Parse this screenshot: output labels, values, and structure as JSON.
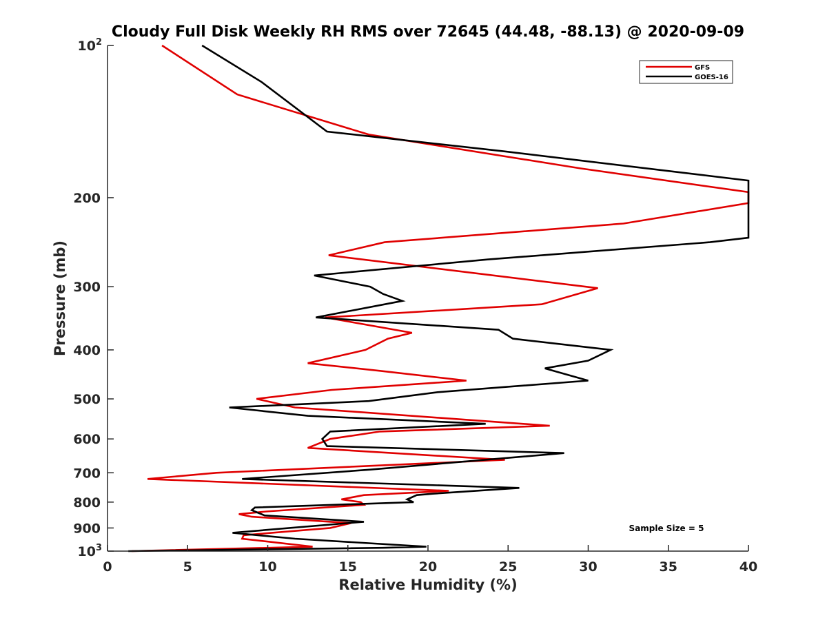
{
  "chart_data": {
    "type": "line",
    "title": "Cloudy Full Disk Weekly RH RMS over 72645 (44.48, -88.13) @ 2020-09-09",
    "xlabel": "Relative Humidity (%)",
    "ylabel": "Pressure (mb)",
    "xlim": [
      0,
      40
    ],
    "ylim": [
      100,
      1000
    ],
    "y_scale": "log",
    "y_reversed": true,
    "x_ticks": [
      0,
      5,
      10,
      15,
      20,
      25,
      30,
      35,
      40
    ],
    "x_tick_labels": [
      "0",
      "5",
      "10",
      "15",
      "20",
      "25",
      "30",
      "35",
      "40"
    ],
    "y_ticks": [
      200,
      300,
      400,
      500,
      600,
      700,
      800,
      900
    ],
    "y_tick_labels": [
      "200",
      "300",
      "400",
      "500",
      "600",
      "700",
      "800",
      "900"
    ],
    "y_end_ticks": [
      {
        "value": 100,
        "base": "10",
        "exp": "2"
      },
      {
        "value": 1000,
        "base": "10",
        "exp": "3"
      }
    ],
    "grid": false,
    "legend_position": "top-right",
    "annotation": "Sample Size = 5",
    "series": [
      {
        "name": "GFS",
        "color": "#e00000",
        "points": [
          [
            3.4,
            100
          ],
          [
            8.1,
            125
          ],
          [
            16.3,
            150
          ],
          [
            29.5,
            175
          ],
          [
            40.0,
            195
          ],
          [
            40.0,
            205
          ],
          [
            32.2,
            225
          ],
          [
            17.3,
            245
          ],
          [
            13.8,
            260
          ],
          [
            30.6,
            302
          ],
          [
            27.1,
            325
          ],
          [
            13.6,
            345
          ],
          [
            19.0,
            370
          ],
          [
            17.5,
            380
          ],
          [
            16.1,
            400
          ],
          [
            12.5,
            425
          ],
          [
            17.0,
            440
          ],
          [
            22.4,
            460
          ],
          [
            14.0,
            480
          ],
          [
            9.3,
            500
          ],
          [
            11.7,
            520
          ],
          [
            27.6,
            565
          ],
          [
            17.0,
            580
          ],
          [
            13.9,
            600
          ],
          [
            12.5,
            625
          ],
          [
            24.8,
            660
          ],
          [
            6.8,
            700
          ],
          [
            2.5,
            720
          ],
          [
            21.3,
            760
          ],
          [
            16.0,
            775
          ],
          [
            14.6,
            790
          ],
          [
            15.8,
            800
          ],
          [
            16.0,
            810
          ],
          [
            9.9,
            835
          ],
          [
            8.2,
            845
          ],
          [
            9.0,
            855
          ],
          [
            15.2,
            880
          ],
          [
            13.9,
            900
          ],
          [
            8.5,
            930
          ],
          [
            8.4,
            945
          ],
          [
            12.8,
            980
          ],
          [
            1.5,
            1000
          ]
        ]
      },
      {
        "name": "GOES-16",
        "color": "#000000",
        "points": [
          [
            5.9,
            100
          ],
          [
            9.6,
            118
          ],
          [
            13.7,
            148
          ],
          [
            24.8,
            162
          ],
          [
            40.0,
            185
          ],
          [
            40.0,
            240
          ],
          [
            37.6,
            245
          ],
          [
            23.7,
            265
          ],
          [
            12.9,
            285
          ],
          [
            16.4,
            300
          ],
          [
            17.2,
            310
          ],
          [
            18.4,
            320
          ],
          [
            13.0,
            345
          ],
          [
            24.4,
            365
          ],
          [
            25.3,
            380
          ],
          [
            31.4,
            400
          ],
          [
            30.0,
            420
          ],
          [
            27.3,
            435
          ],
          [
            30.0,
            460
          ],
          [
            20.6,
            485
          ],
          [
            16.3,
            505
          ],
          [
            7.6,
            520
          ],
          [
            12.5,
            540
          ],
          [
            23.6,
            560
          ],
          [
            13.9,
            580
          ],
          [
            13.4,
            600
          ],
          [
            13.7,
            620
          ],
          [
            28.5,
            640
          ],
          [
            16.4,
            690
          ],
          [
            8.4,
            720
          ],
          [
            25.7,
            750
          ],
          [
            20.3,
            770
          ],
          [
            19.3,
            775
          ],
          [
            18.7,
            790
          ],
          [
            19.1,
            800
          ],
          [
            9.2,
            820
          ],
          [
            9.0,
            830
          ],
          [
            9.8,
            850
          ],
          [
            16.0,
            875
          ],
          [
            7.8,
            920
          ],
          [
            11.7,
            945
          ],
          [
            19.9,
            980
          ],
          [
            17.2,
            985
          ],
          [
            1.3,
            1000
          ]
        ]
      }
    ]
  }
}
